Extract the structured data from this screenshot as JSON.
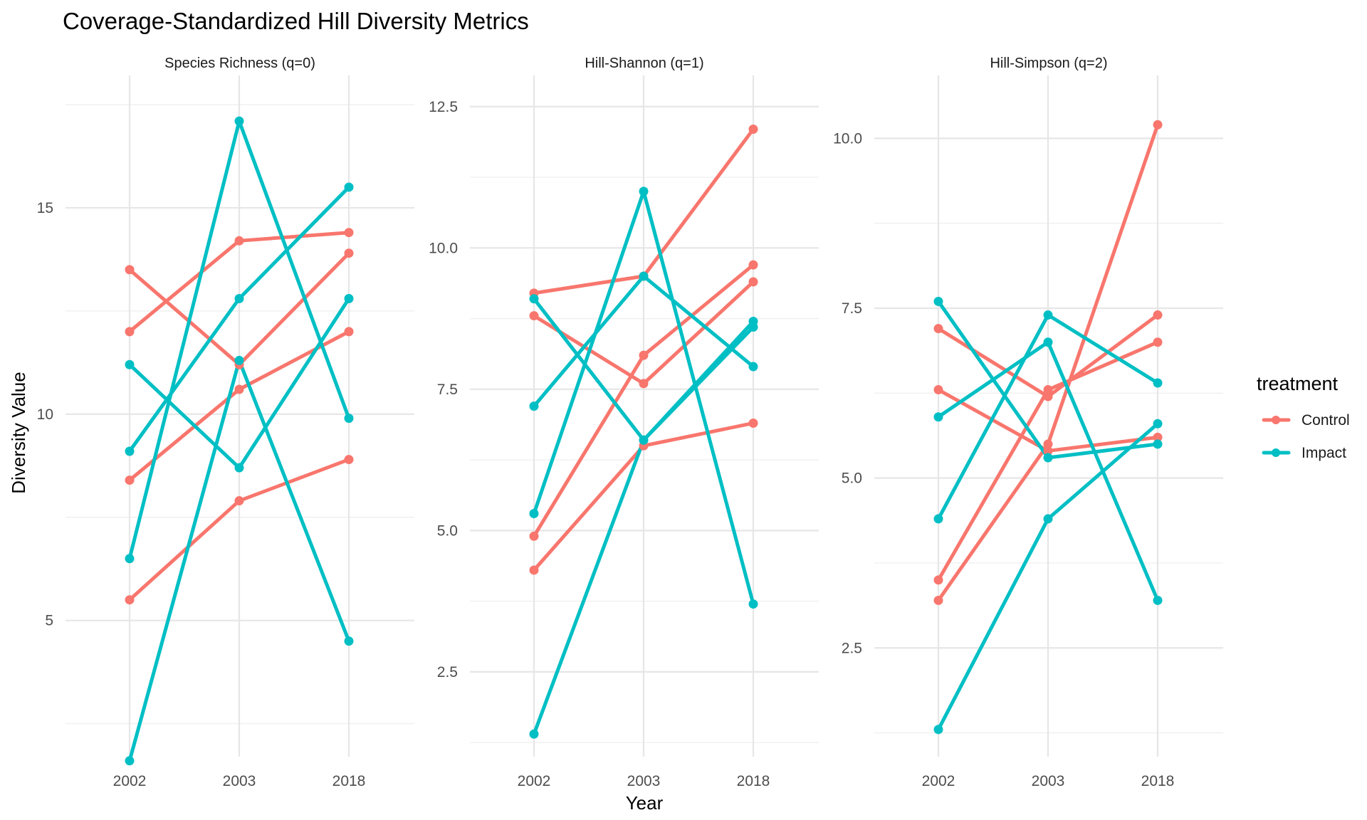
{
  "chart_data": {
    "type": "line",
    "title": "Coverage-Standardized Hill Diversity Metrics",
    "xlabel": "Year",
    "ylabel": "Diversity Value",
    "categories": [
      "2002",
      "2003",
      "2018"
    ],
    "legend": {
      "title": "treatment",
      "placement": "right",
      "entries": [
        {
          "name": "Control",
          "color": "#F8766D"
        },
        {
          "name": "Impact",
          "color": "#00BFC4"
        }
      ]
    },
    "grid": true,
    "panels": [
      {
        "label": "Species Richness (q=0)",
        "ylim": [
          1.7,
          18.0
        ],
        "yticks": [
          5,
          10,
          15
        ],
        "yticklabels": [
          "5",
          "10",
          "15"
        ],
        "series": [
          {
            "group": "Control",
            "values": [
              13.5,
              11.2,
              13.9
            ]
          },
          {
            "group": "Control",
            "values": [
              12.0,
              14.2,
              14.4
            ]
          },
          {
            "group": "Control",
            "values": [
              8.4,
              10.6,
              12.0
            ]
          },
          {
            "group": "Control",
            "values": [
              5.5,
              7.9,
              8.9
            ]
          },
          {
            "group": "Impact",
            "values": [
              11.2,
              8.7,
              12.8
            ]
          },
          {
            "group": "Impact",
            "values": [
              9.1,
              12.8,
              15.5
            ]
          },
          {
            "group": "Impact",
            "values": [
              6.5,
              17.1,
              9.9
            ]
          },
          {
            "group": "Impact",
            "values": [
              1.6,
              11.3,
              4.5
            ]
          }
        ]
      },
      {
        "label": "Hill-Shannon (q=1)",
        "ylim": [
          1.0,
          12.9
        ],
        "yticks": [
          2.5,
          5.0,
          7.5,
          10.0,
          12.5
        ],
        "yticklabels": [
          "2.5",
          "5.0",
          "7.5",
          "10.0",
          "12.5"
        ],
        "series": [
          {
            "group": "Control",
            "values": [
              9.2,
              9.5,
              12.1
            ]
          },
          {
            "group": "Control",
            "values": [
              8.8,
              7.6,
              9.4
            ]
          },
          {
            "group": "Control",
            "values": [
              4.9,
              8.1,
              9.7
            ]
          },
          {
            "group": "Control",
            "values": [
              4.3,
              6.5,
              6.9
            ]
          },
          {
            "group": "Impact",
            "values": [
              9.1,
              6.6,
              8.7
            ]
          },
          {
            "group": "Impact",
            "values": [
              7.2,
              9.5,
              7.9
            ]
          },
          {
            "group": "Impact",
            "values": [
              5.3,
              11.0,
              3.7
            ]
          },
          {
            "group": "Impact",
            "values": [
              1.4,
              6.6,
              8.6
            ]
          }
        ]
      },
      {
        "label": "Hill-Simpson (q=2)",
        "ylim": [
          0.9,
          10.8
        ],
        "yticks": [
          2.5,
          5.0,
          7.5,
          10.0
        ],
        "yticklabels": [
          "2.5",
          "5.0",
          "7.5",
          "10.0"
        ],
        "series": [
          {
            "group": "Control",
            "values": [
              7.2,
              6.2,
              7.4
            ]
          },
          {
            "group": "Control",
            "values": [
              6.3,
              5.4,
              5.6
            ]
          },
          {
            "group": "Control",
            "values": [
              3.5,
              6.3,
              7.0
            ]
          },
          {
            "group": "Control",
            "values": [
              3.2,
              5.5,
              10.2
            ]
          },
          {
            "group": "Impact",
            "values": [
              7.6,
              5.3,
              5.5
            ]
          },
          {
            "group": "Impact",
            "values": [
              5.9,
              7.0,
              3.2
            ]
          },
          {
            "group": "Impact",
            "values": [
              4.4,
              7.4,
              6.4
            ]
          },
          {
            "group": "Impact",
            "values": [
              1.3,
              4.4,
              5.8
            ]
          }
        ]
      }
    ]
  }
}
